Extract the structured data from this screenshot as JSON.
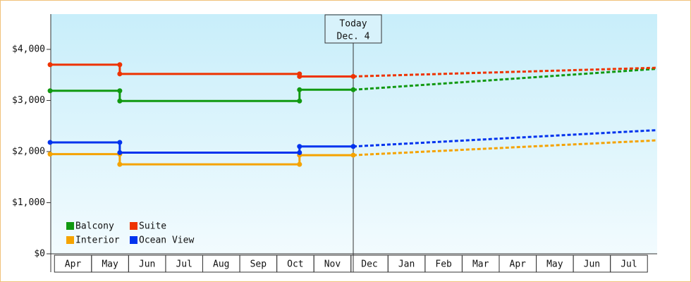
{
  "chart_data": {
    "type": "line",
    "xlim": [
      -0.1,
      16.3
    ],
    "xticks": [
      {
        "value": 0.5,
        "label": "Apr"
      },
      {
        "value": 1.5,
        "label": "May"
      },
      {
        "value": 2.5,
        "label": "Jun"
      },
      {
        "value": 3.5,
        "label": "Jul"
      },
      {
        "value": 4.5,
        "label": "Aug"
      },
      {
        "value": 5.5,
        "label": "Sep"
      },
      {
        "value": 6.5,
        "label": "Oct"
      },
      {
        "value": 7.5,
        "label": "Nov"
      },
      {
        "value": 8.5,
        "label": "Dec"
      },
      {
        "value": 9.5,
        "label": "Jan"
      },
      {
        "value": 10.5,
        "label": "Feb"
      },
      {
        "value": 11.5,
        "label": "Mar"
      },
      {
        "value": 12.5,
        "label": "Apr"
      },
      {
        "value": 13.5,
        "label": "May"
      },
      {
        "value": 14.5,
        "label": "Jun"
      },
      {
        "value": 15.5,
        "label": "Jul"
      }
    ],
    "ylim": [
      0,
      4690
    ],
    "yticks": [
      {
        "value": 0,
        "label": "$0"
      },
      {
        "value": 1000,
        "label": "$1,000"
      },
      {
        "value": 2000,
        "label": "$2,000"
      },
      {
        "value": 3000,
        "label": "$3,000"
      },
      {
        "value": 4000,
        "label": "$4,000"
      }
    ],
    "today": {
      "x": 8.1,
      "label": [
        "Today",
        "Dec. 4"
      ]
    },
    "legend": "lower left",
    "series": [
      {
        "name": "Balcony",
        "color": "#119911",
        "x": [
          -0.08,
          1.8,
          1.8,
          6.65,
          6.65,
          8.1
        ],
        "values": [
          3190,
          3190,
          2990,
          2990,
          3210,
          3210
        ],
        "forecast": {
          "x": [
            8.1,
            16.3
          ],
          "values": [
            3210,
            3620
          ]
        }
      },
      {
        "name": "Suite",
        "color": "#ee3300",
        "x": [
          -0.08,
          1.8,
          1.8,
          6.65,
          6.65,
          8.1
        ],
        "values": [
          3700,
          3700,
          3520,
          3520,
          3470,
          3470
        ],
        "forecast": {
          "x": [
            8.1,
            16.3
          ],
          "values": [
            3470,
            3640
          ]
        }
      },
      {
        "name": "Interior",
        "color": "#f5a300",
        "x": [
          -0.08,
          1.8,
          1.8,
          6.65,
          6.65,
          8.1
        ],
        "values": [
          1950,
          1950,
          1750,
          1750,
          1930,
          1930
        ],
        "forecast": {
          "x": [
            8.1,
            16.3
          ],
          "values": [
            1930,
            2220
          ]
        }
      },
      {
        "name": "Ocean View",
        "color": "#0033ee",
        "x": [
          -0.08,
          1.8,
          1.8,
          6.65,
          6.65,
          8.1
        ],
        "values": [
          2180,
          2180,
          1980,
          1980,
          2100,
          2100
        ],
        "forecast": {
          "x": [
            8.1,
            16.3
          ],
          "values": [
            2100,
            2420
          ]
        }
      }
    ]
  }
}
